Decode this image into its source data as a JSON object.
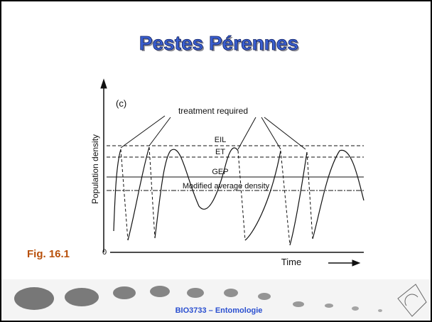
{
  "slide": {
    "title": "Pestes Pérennes",
    "figure_label": "Fig. 16.1",
    "footer": "BIO3733 – Entomologie"
  },
  "diagram": {
    "panel": "(c)",
    "annotation": "treatment required",
    "y_axis_label": "Population density",
    "x_axis_label": "Time",
    "origin_label": "0",
    "levels": [
      "EIL",
      "ET",
      "GEP",
      "Modified average density"
    ]
  }
}
